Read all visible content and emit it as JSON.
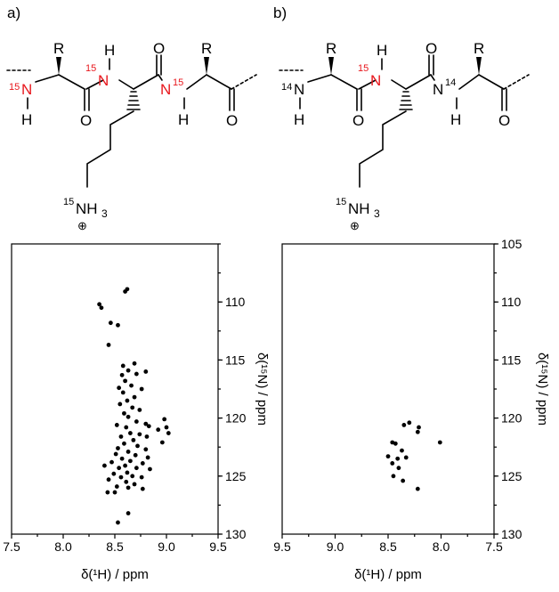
{
  "panels": [
    {
      "label": "a)",
      "structure": {
        "residues": [
          "R",
          "R"
        ],
        "left_n": {
          "isotope": "15",
          "atom": "N",
          "h": "H"
        },
        "mid_n": {
          "isotope": "15",
          "atom": "N",
          "h": "H"
        },
        "right_n": {
          "isotope": "15",
          "atom": "N",
          "h": "H"
        },
        "carbonyls": [
          "O",
          "O",
          "O"
        ],
        "sidechain_n": {
          "isotope": "15",
          "atom": "NH",
          "sub": "3",
          "charge": "⊕"
        }
      }
    },
    {
      "label": "b)",
      "structure": {
        "residues": [
          "R",
          "R"
        ],
        "left_n": {
          "isotope": "14",
          "atom": "N",
          "h": "H"
        },
        "mid_n": {
          "isotope": "15",
          "atom": "N",
          "h": "H"
        },
        "right_n": {
          "isotope": "14",
          "atom": "N",
          "h": "H"
        },
        "carbonyls": [
          "O",
          "O",
          "O"
        ],
        "sidechain_n": {
          "isotope": "15",
          "atom": "NH",
          "sub": "3",
          "charge": "⊕"
        }
      }
    }
  ],
  "colors": {
    "labeled_nitrogen": "#e8171d",
    "ink": "#000000"
  },
  "chart_data": [
    {
      "type": "scatter",
      "xlabel": "δ(¹H) / ppm",
      "ylabel": "δ(¹⁵N) / ppm",
      "xlim": [
        7.5,
        9.5
      ],
      "ylim": [
        130,
        105
      ],
      "x_inverted": false,
      "y_inverted": true,
      "xticks": [
        "7.5",
        "8.0",
        "8.5",
        "9.0",
        "9.5"
      ],
      "yticks": [
        "110",
        "115",
        "120",
        "125",
        "130"
      ],
      "y_axis_side": "right",
      "points": [
        [
          8.62,
          108.9
        ],
        [
          8.6,
          109.1
        ],
        [
          8.35,
          110.2
        ],
        [
          8.37,
          110.5
        ],
        [
          8.46,
          111.8
        ],
        [
          8.53,
          112.0
        ],
        [
          8.44,
          113.7
        ],
        [
          8.58,
          115.5
        ],
        [
          8.69,
          115.3
        ],
        [
          8.8,
          116.0
        ],
        [
          8.63,
          115.9
        ],
        [
          8.57,
          116.3
        ],
        [
          8.71,
          116.2
        ],
        [
          8.6,
          116.8
        ],
        [
          8.66,
          117.2
        ],
        [
          8.54,
          117.4
        ],
        [
          8.76,
          117.5
        ],
        [
          8.58,
          117.8
        ],
        [
          8.69,
          118.2
        ],
        [
          8.62,
          118.5
        ],
        [
          8.55,
          118.8
        ],
        [
          8.67,
          119.1
        ],
        [
          8.74,
          119.3
        ],
        [
          8.59,
          119.6
        ],
        [
          8.63,
          119.9
        ],
        [
          8.98,
          120.1
        ],
        [
          8.71,
          120.3
        ],
        [
          8.8,
          120.5
        ],
        [
          8.52,
          120.6
        ],
        [
          8.61,
          120.8
        ],
        [
          8.83,
          120.7
        ],
        [
          9.0,
          120.8
        ],
        [
          8.92,
          121.0
        ],
        [
          9.02,
          121.3
        ],
        [
          8.65,
          121.3
        ],
        [
          8.74,
          121.4
        ],
        [
          8.56,
          121.6
        ],
        [
          8.81,
          121.6
        ],
        [
          8.68,
          121.9
        ],
        [
          8.96,
          122.1
        ],
        [
          8.59,
          122.2
        ],
        [
          8.72,
          122.4
        ],
        [
          8.53,
          122.6
        ],
        [
          8.8,
          122.7
        ],
        [
          8.63,
          122.9
        ],
        [
          8.51,
          123.1
        ],
        [
          8.7,
          123.2
        ],
        [
          8.82,
          123.4
        ],
        [
          8.57,
          123.5
        ],
        [
          8.65,
          123.7
        ],
        [
          8.47,
          123.8
        ],
        [
          8.77,
          123.9
        ],
        [
          8.6,
          124.1
        ],
        [
          8.4,
          124.1
        ],
        [
          8.54,
          124.3
        ],
        [
          8.71,
          124.3
        ],
        [
          8.84,
          124.4
        ],
        [
          8.62,
          124.7
        ],
        [
          8.49,
          124.8
        ],
        [
          8.67,
          125.0
        ],
        [
          8.56,
          125.1
        ],
        [
          8.76,
          125.1
        ],
        [
          8.44,
          125.3
        ],
        [
          8.61,
          125.5
        ],
        [
          8.69,
          125.7
        ],
        [
          8.52,
          125.9
        ],
        [
          8.63,
          126.0
        ],
        [
          8.77,
          126.1
        ],
        [
          8.43,
          126.4
        ],
        [
          8.5,
          126.4
        ],
        [
          8.63,
          128.2
        ],
        [
          8.53,
          129.0
        ]
      ]
    },
    {
      "type": "scatter",
      "xlabel": "δ(¹H) / ppm",
      "ylabel": "δ(¹⁵N) / ppm",
      "xlim": [
        9.5,
        7.5
      ],
      "ylim": [
        130,
        105
      ],
      "x_inverted": true,
      "y_inverted": true,
      "xticks": [
        "9.5",
        "9.0",
        "8.5",
        "8.0",
        "7.5"
      ],
      "yticks": [
        "105",
        "110",
        "115",
        "120",
        "125",
        "130"
      ],
      "y_axis_side": "right",
      "points": [
        [
          8.3,
          120.4
        ],
        [
          8.35,
          120.6
        ],
        [
          8.21,
          120.8
        ],
        [
          8.22,
          121.2
        ],
        [
          8.01,
          122.1
        ],
        [
          8.46,
          122.1
        ],
        [
          8.43,
          122.2
        ],
        [
          8.37,
          122.8
        ],
        [
          8.5,
          123.3
        ],
        [
          8.41,
          123.5
        ],
        [
          8.33,
          123.4
        ],
        [
          8.46,
          123.9
        ],
        [
          8.4,
          124.3
        ],
        [
          8.45,
          125.0
        ],
        [
          8.36,
          125.4
        ],
        [
          8.22,
          126.1
        ]
      ]
    }
  ]
}
